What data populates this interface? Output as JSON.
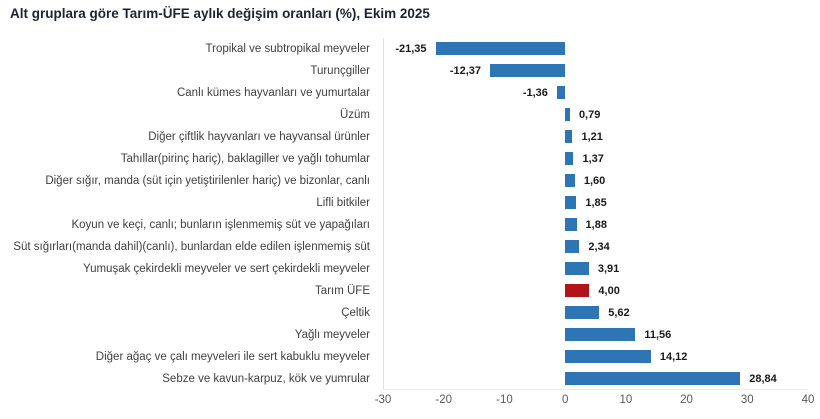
{
  "title": "Alt gruplara göre Tarım-ÜFE aylık değişim oranları (%), Ekim 2025",
  "chart_data": {
    "type": "bar",
    "orientation": "horizontal",
    "title": "Alt gruplara göre Tarım-ÜFE aylık değişim oranları (%), Ekim 2025",
    "xlabel": "",
    "ylabel": "",
    "xlim": [
      -30,
      40
    ],
    "x_ticks": [
      -30,
      -20,
      -10,
      0,
      10,
      20,
      30,
      40
    ],
    "grid": false,
    "legend": "none",
    "categories": [
      "Tropikal ve subtropikal meyveler",
      "Turunçgiller",
      "Canlı kümes hayvanları ve yumurtalar",
      "Üzüm",
      "Diğer çiftlik hayvanları ve hayvansal ürünler",
      "Tahıllar(pirinç hariç), baklagiller ve yağlı tohumlar",
      "Diğer sığır, manda (süt için yetiştirilenler hariç) ve bizonlar, canlı",
      "Lifli bitkiler",
      "Koyun ve keçi, canlı; bunların işlenmemiş süt ve yapağıları",
      "Süt sığırları(manda dahil)(canlı), bunlardan elde edilen işlenmemiş süt",
      "Yumuşak çekirdekli meyveler ve sert çekirdekli meyveler",
      "Tarım ÜFE",
      "Çeltik",
      "Yağlı meyveler",
      "Diğer ağaç ve çalı meyveleri ile sert kabuklu meyveler",
      "Sebze ve kavun-karpuz, kök ve yumrular"
    ],
    "values": [
      -21.35,
      -12.37,
      -1.36,
      0.79,
      1.21,
      1.37,
      1.6,
      1.85,
      1.88,
      2.34,
      3.91,
      4.0,
      5.62,
      11.56,
      14.12,
      28.84
    ],
    "value_labels": [
      "-21,35",
      "-12,37",
      "-1,36",
      "0,79",
      "1,21",
      "1,37",
      "1,60",
      "1,85",
      "1,88",
      "2,34",
      "3,91",
      "4,00",
      "5,62",
      "11,56",
      "14,12",
      "28,84"
    ],
    "highlight_category": "Tarım ÜFE",
    "bar_color": "#2e75b6",
    "highlight_color": "#b31418"
  },
  "colors": {
    "title_text": "#1b2430",
    "category_text": "#404040",
    "value_text": "#1a1a1a",
    "tick_text": "#595959",
    "axis_line": "#e2e2e2"
  }
}
